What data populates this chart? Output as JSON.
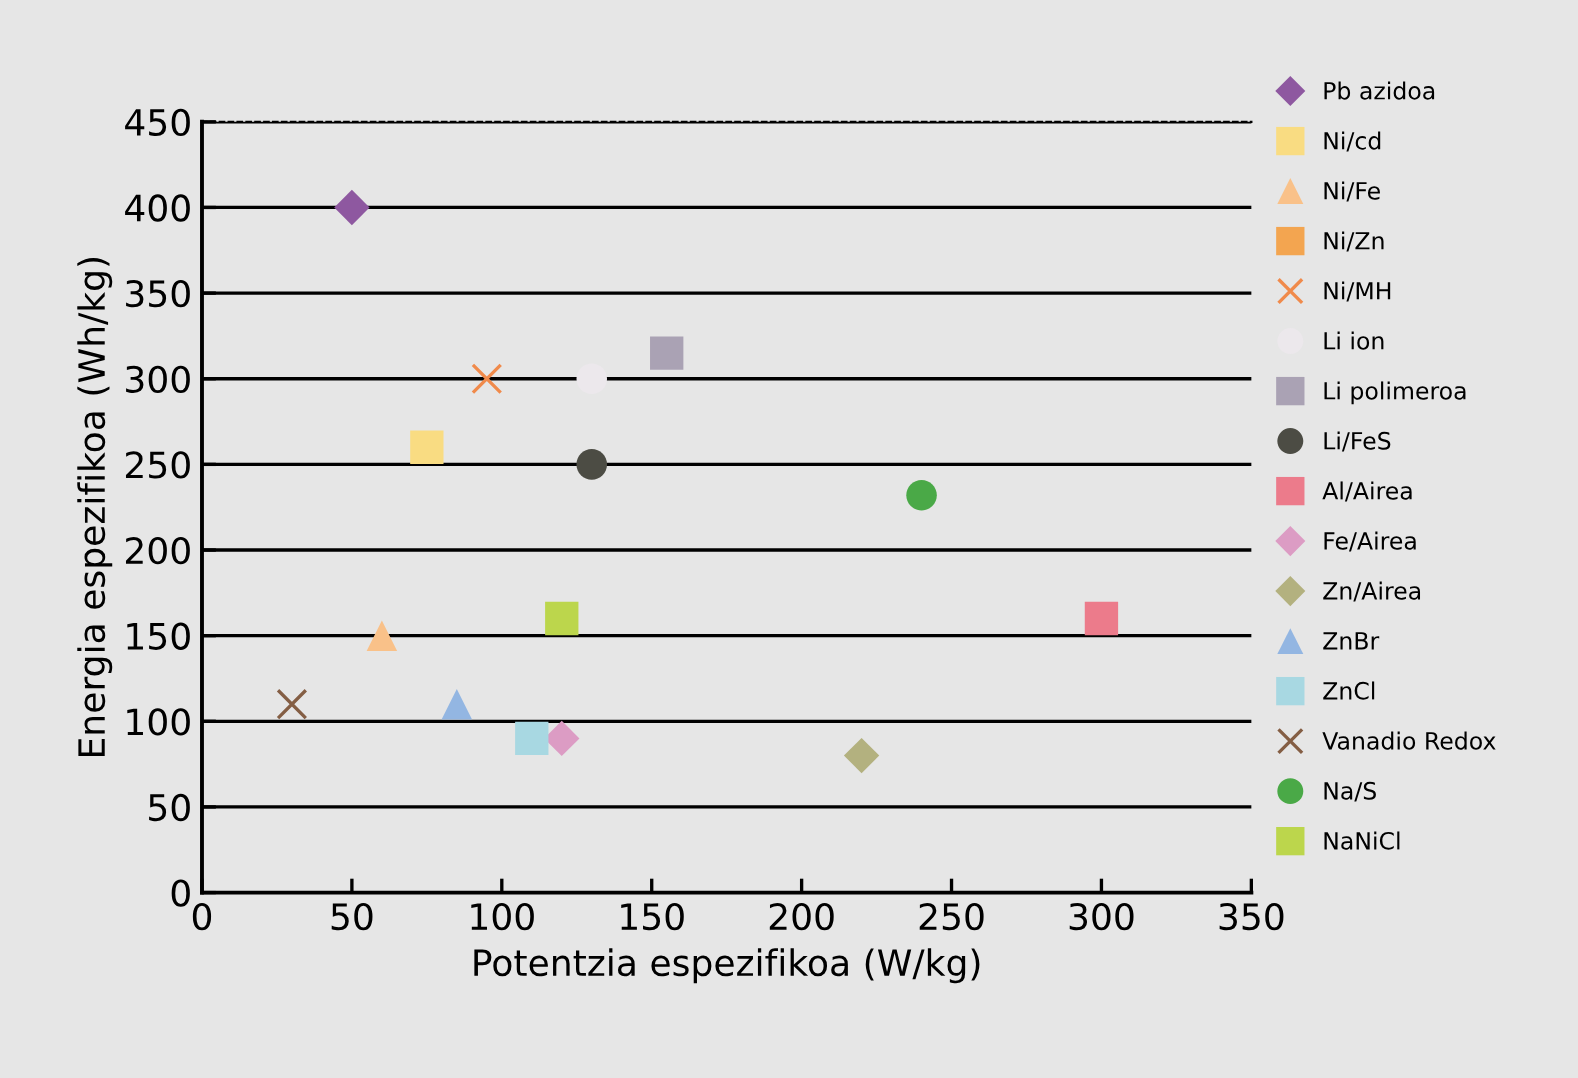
{
  "chart_data": {
    "type": "scatter",
    "xlabel": "Potentzia espezifikoa (W/kg)",
    "ylabel": "Energia espezifikoa (Wh/kg)",
    "xlim": [
      0,
      350
    ],
    "ylim": [
      0,
      450
    ],
    "xticks": [
      0,
      50,
      100,
      150,
      200,
      250,
      300,
      350
    ],
    "yticks": [
      0,
      50,
      100,
      150,
      200,
      250,
      300,
      350,
      400,
      450
    ],
    "grid": "y",
    "legend": "right",
    "series": [
      {
        "name": "Pb azidoa",
        "color": "#8e58a0",
        "marker": "diamond",
        "x": [
          50
        ],
        "values": [
          400
        ]
      },
      {
        "name": "Ni/cd",
        "color": "#f9dc82",
        "marker": "square",
        "x": [
          75
        ],
        "values": [
          260
        ]
      },
      {
        "name": "Ni/Fe",
        "color": "#f9c189",
        "marker": "triangle",
        "x": [
          60
        ],
        "values": [
          150
        ]
      },
      {
        "name": "Ni/Zn",
        "color": "#f3a550",
        "marker": "square",
        "x": [
          null
        ],
        "values": [
          null
        ]
      },
      {
        "name": "Ni/MH",
        "color": "#f08a4b",
        "marker": "cross",
        "x": [
          95
        ],
        "values": [
          300
        ]
      },
      {
        "name": "Li ion",
        "color": "#ece8ec",
        "marker": "circle",
        "x": [
          130
        ],
        "values": [
          300
        ]
      },
      {
        "name": "Li polimeroa",
        "color": "#aaa2b4",
        "marker": "square",
        "x": [
          155
        ],
        "values": [
          315
        ]
      },
      {
        "name": "Li/FeS",
        "color": "#4c4c44",
        "marker": "circle",
        "x": [
          130
        ],
        "values": [
          250
        ]
      },
      {
        "name": "Al/Airea",
        "color": "#ec7b8b",
        "marker": "square",
        "x": [
          300
        ],
        "values": [
          160
        ]
      },
      {
        "name": "Fe/Airea",
        "color": "#dc9cc4",
        "marker": "diamond",
        "x": [
          120
        ],
        "values": [
          90
        ]
      },
      {
        "name": "Zn/Airea",
        "color": "#b3b17f",
        "marker": "diamond",
        "x": [
          220
        ],
        "values": [
          80
        ]
      },
      {
        "name": "ZnBr",
        "color": "#93b6e2",
        "marker": "triangle",
        "x": [
          85
        ],
        "values": [
          110
        ]
      },
      {
        "name": "ZnCl",
        "color": "#a8d8e2",
        "marker": "square",
        "x": [
          110
        ],
        "values": [
          90
        ]
      },
      {
        "name": "Vanadio Redox",
        "color": "#845e44",
        "marker": "cross",
        "x": [
          30
        ],
        "values": [
          110
        ]
      },
      {
        "name": "Na/S",
        "color": "#4aa947",
        "marker": "circle",
        "x": [
          240
        ],
        "values": [
          232
        ]
      },
      {
        "name": "NaNiCl",
        "color": "#bcd64c",
        "marker": "square",
        "x": [
          120
        ],
        "values": [
          160
        ]
      }
    ]
  }
}
